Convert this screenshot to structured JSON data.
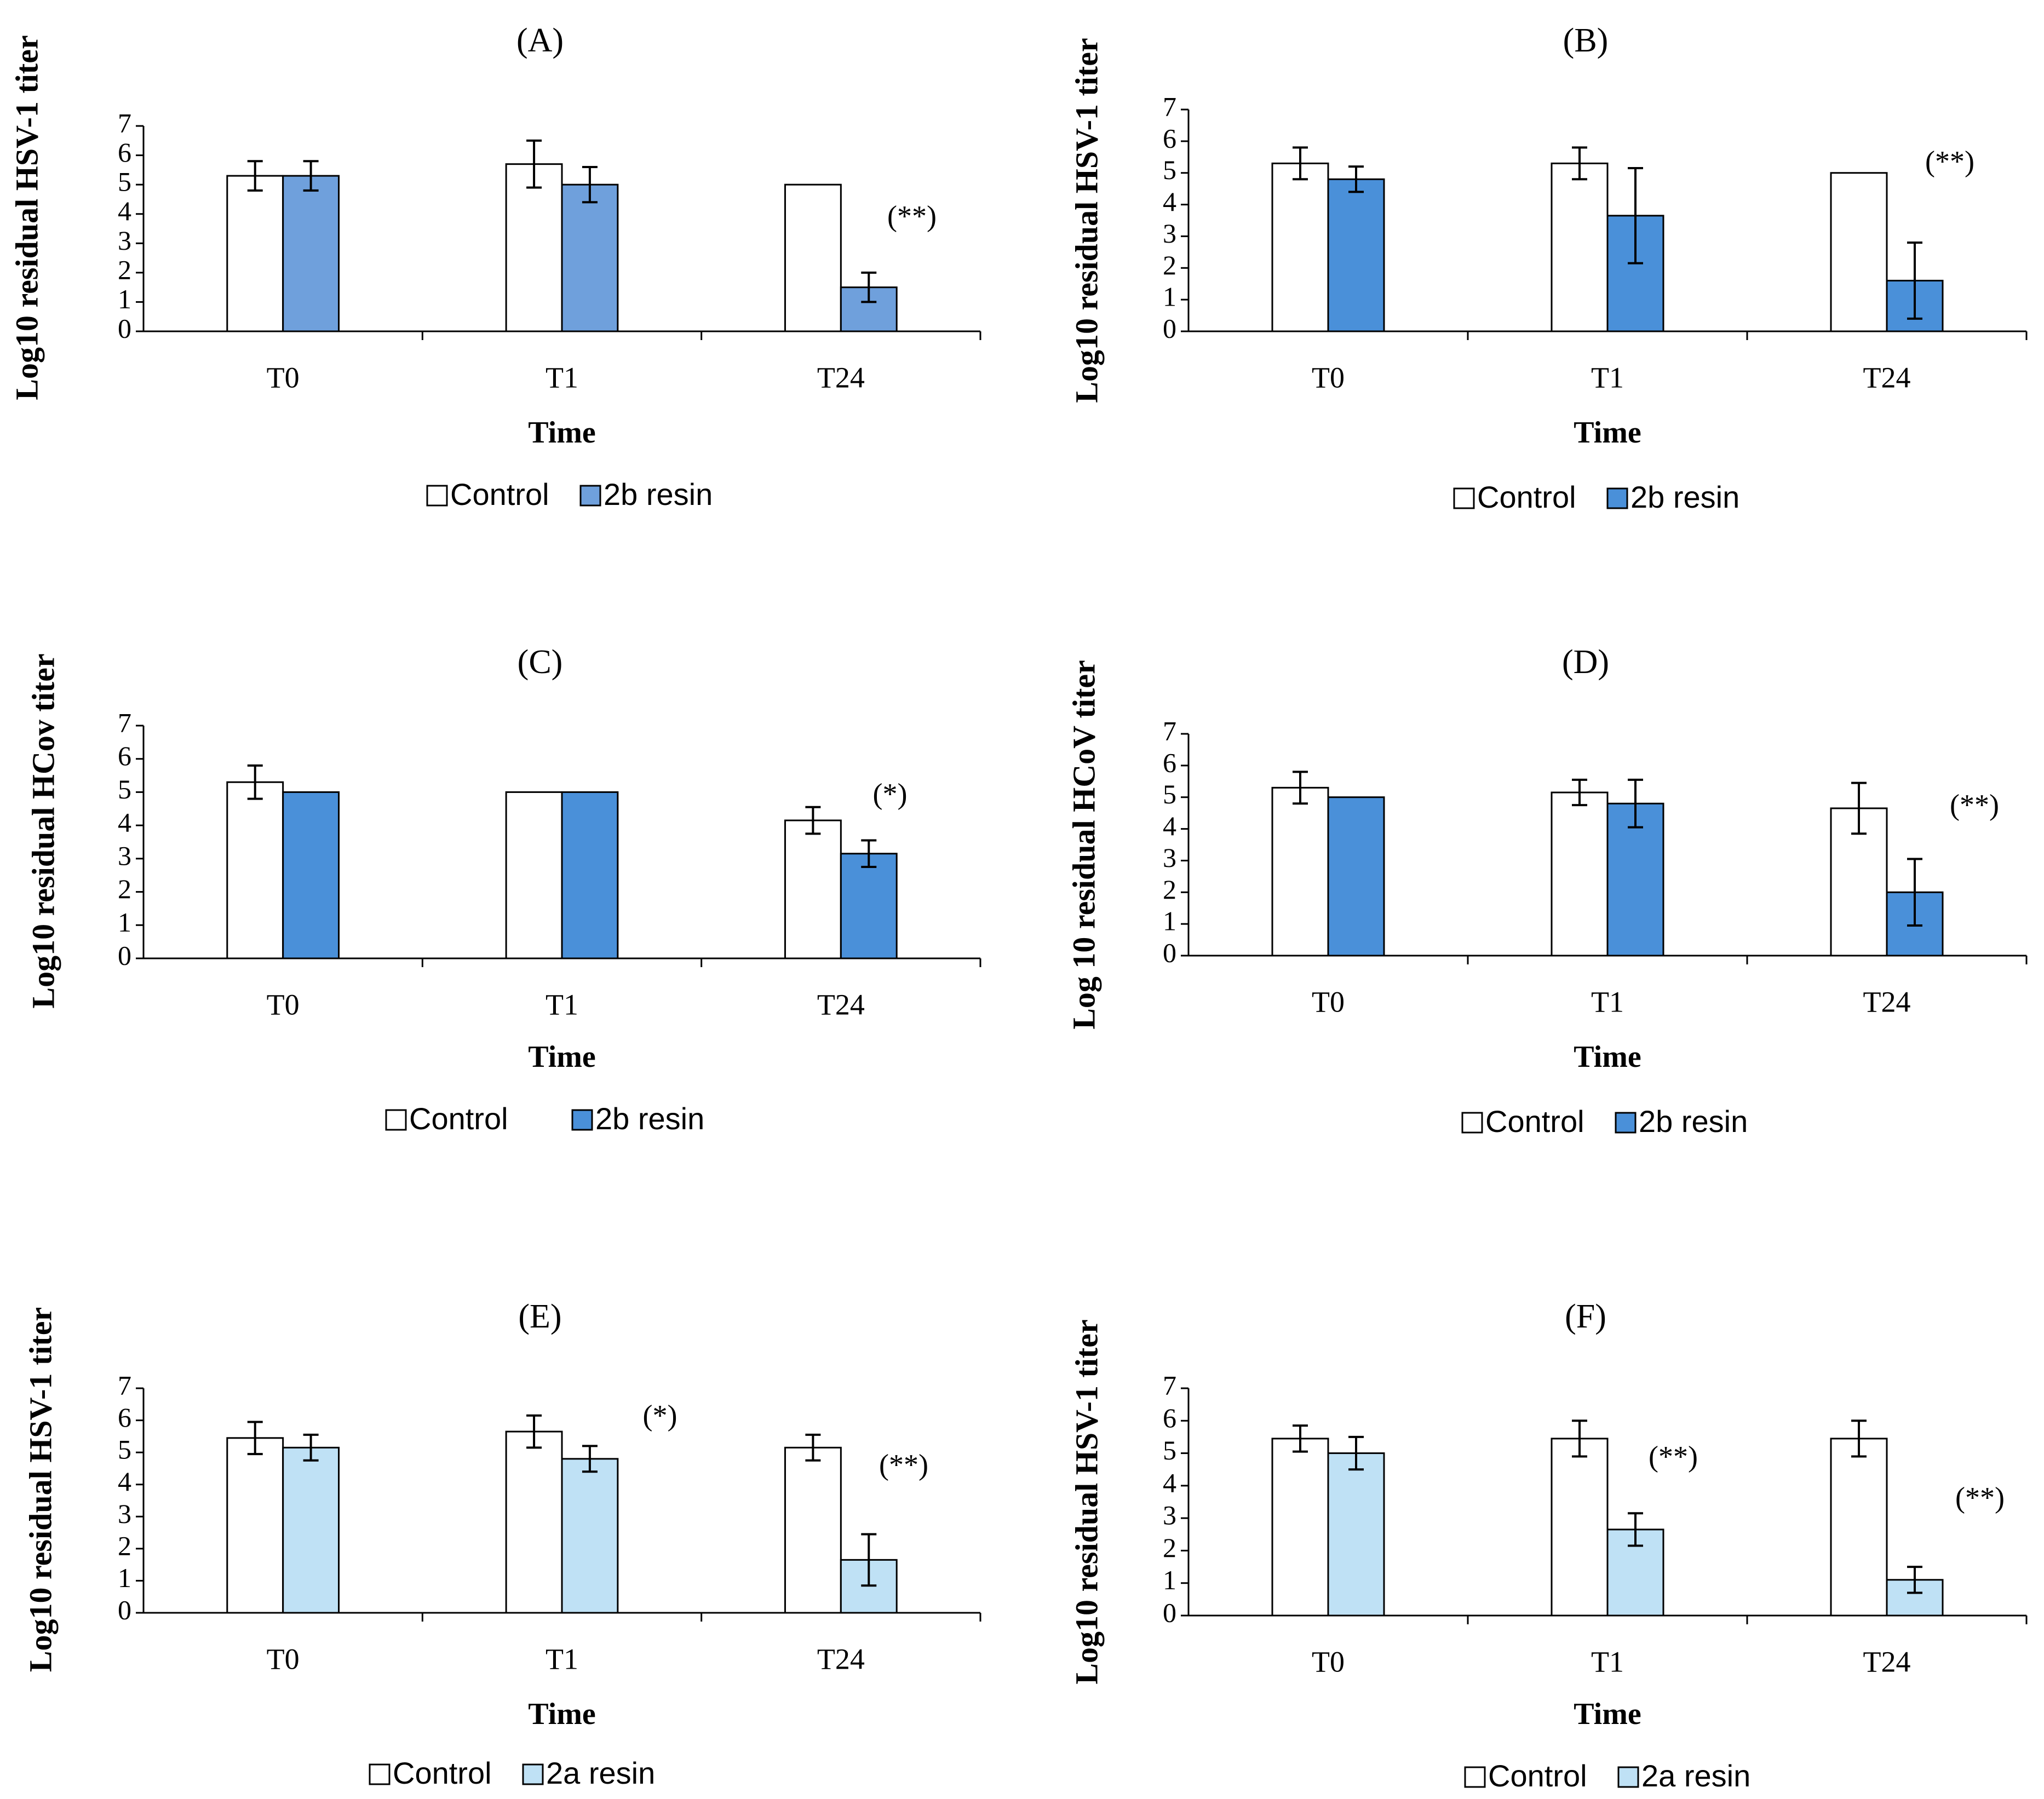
{
  "colors": {
    "control": "#ffffff",
    "resin_2b_A": "#6fa0dc",
    "resin_2b": "#4a90d9",
    "resin_2a": "#bfe1f5",
    "stroke": "#000000"
  },
  "chart_data": [
    {
      "panel": "(A)",
      "type": "bar",
      "categories": [
        "T0",
        "T1",
        "T24"
      ],
      "series": [
        {
          "name": "Control",
          "values": [
            5.3,
            5.7,
            5.0
          ],
          "errors": [
            0.5,
            0.8,
            0.0
          ]
        },
        {
          "name": "2b resin",
          "values": [
            5.3,
            5.0,
            1.5
          ],
          "errors": [
            0.5,
            0.6,
            0.5
          ]
        }
      ],
      "annotations": [
        {
          "category": "T24",
          "text": "(**)"
        }
      ],
      "xlabel": "Time",
      "ylabel": "Log10 residual HSV-1 titer",
      "ylim": [
        0,
        7
      ],
      "yticks": [
        "0",
        "1",
        "2",
        "3",
        "4",
        "5",
        "6",
        "7"
      ],
      "legend": [
        "Control",
        "2b resin"
      ]
    },
    {
      "panel": "(B)",
      "type": "bar",
      "categories": [
        "T0",
        "T1",
        "T24"
      ],
      "series": [
        {
          "name": "Control",
          "values": [
            5.3,
            5.3,
            5.0
          ],
          "errors": [
            0.5,
            0.5,
            0.0
          ]
        },
        {
          "name": "2b resin",
          "values": [
            4.8,
            3.65,
            1.6
          ],
          "errors": [
            0.4,
            1.5,
            1.2
          ]
        }
      ],
      "annotations": [
        {
          "category": "T24",
          "text": "(**)"
        }
      ],
      "xlabel": "Time",
      "ylabel": "Log10 residual HSV-1 titer",
      "ylim": [
        0,
        7
      ],
      "yticks": [
        "0",
        "1",
        "2",
        "3",
        "4",
        "5",
        "6",
        "7"
      ],
      "legend": [
        "Control",
        "2b resin"
      ]
    },
    {
      "panel": "(C)",
      "type": "bar",
      "categories": [
        "T0",
        "T1",
        "T24"
      ],
      "series": [
        {
          "name": "Control",
          "values": [
            5.3,
            5.0,
            4.15
          ],
          "errors": [
            0.5,
            0.0,
            0.4
          ]
        },
        {
          "name": "2b resin",
          "values": [
            5.0,
            5.0,
            3.15
          ],
          "errors": [
            0.0,
            0.0,
            0.4
          ]
        }
      ],
      "annotations": [
        {
          "category": "T24",
          "text": "(*)"
        }
      ],
      "xlabel": "Time",
      "ylabel": "Log10 residual  HCov  titer",
      "ylim": [
        0,
        7
      ],
      "yticks": [
        "0",
        "1",
        "2",
        "3",
        "4",
        "5",
        "6",
        "7"
      ],
      "legend": [
        "Control",
        "2b resin"
      ]
    },
    {
      "panel": "(D)",
      "type": "bar",
      "categories": [
        "T0",
        "T1",
        "T24"
      ],
      "series": [
        {
          "name": "Control",
          "values": [
            5.3,
            5.15,
            4.65
          ],
          "errors": [
            0.5,
            0.4,
            0.8
          ]
        },
        {
          "name": "2b resin",
          "values": [
            5.0,
            4.8,
            2.0
          ],
          "errors": [
            0.0,
            0.75,
            1.05
          ]
        }
      ],
      "annotations": [
        {
          "category": "T24",
          "text": "(**)"
        }
      ],
      "xlabel": "Time",
      "ylabel": "Log 10 residual HCoV titer",
      "ylim": [
        0,
        7
      ],
      "yticks": [
        "0",
        "1",
        "2",
        "3",
        "4",
        "5",
        "6",
        "7"
      ],
      "legend": [
        "Control",
        "2b resin"
      ]
    },
    {
      "panel": "(E)",
      "type": "bar",
      "categories": [
        "T0",
        "T1",
        "T24"
      ],
      "series": [
        {
          "name": "Control",
          "values": [
            5.45,
            5.65,
            5.15
          ],
          "errors": [
            0.5,
            0.5,
            0.4
          ]
        },
        {
          "name": "2a resin",
          "values": [
            5.15,
            4.8,
            1.65
          ],
          "errors": [
            0.4,
            0.4,
            0.8
          ]
        }
      ],
      "annotations": [
        {
          "category": "T1",
          "text": "(*)"
        },
        {
          "category": "T24",
          "text": "(**)"
        }
      ],
      "xlabel": "Time",
      "ylabel": "Log10 residual HSV-1 titer",
      "ylim": [
        0,
        7
      ],
      "yticks": [
        "0",
        "1",
        "2",
        "3",
        "4",
        "5",
        "6",
        "7"
      ],
      "legend": [
        "Control",
        "2a resin"
      ]
    },
    {
      "panel": "(F)",
      "type": "bar",
      "categories": [
        "T0",
        "T1",
        "T24"
      ],
      "series": [
        {
          "name": "Control",
          "values": [
            5.45,
            5.45,
            5.45
          ],
          "errors": [
            0.4,
            0.55,
            0.55
          ]
        },
        {
          "name": "2a resin",
          "values": [
            5.0,
            2.65,
            1.1
          ],
          "errors": [
            0.5,
            0.5,
            0.4
          ]
        }
      ],
      "annotations": [
        {
          "category": "T1",
          "text": "(**)"
        },
        {
          "category": "T24",
          "text": "(**)"
        }
      ],
      "xlabel": "Time",
      "ylabel": "Log10 residual HSV-1 titer",
      "ylim": [
        0,
        7
      ],
      "yticks": [
        "0",
        "1",
        "2",
        "3",
        "4",
        "5",
        "6",
        "7"
      ],
      "legend": [
        "Control",
        "2a resin"
      ]
    }
  ]
}
